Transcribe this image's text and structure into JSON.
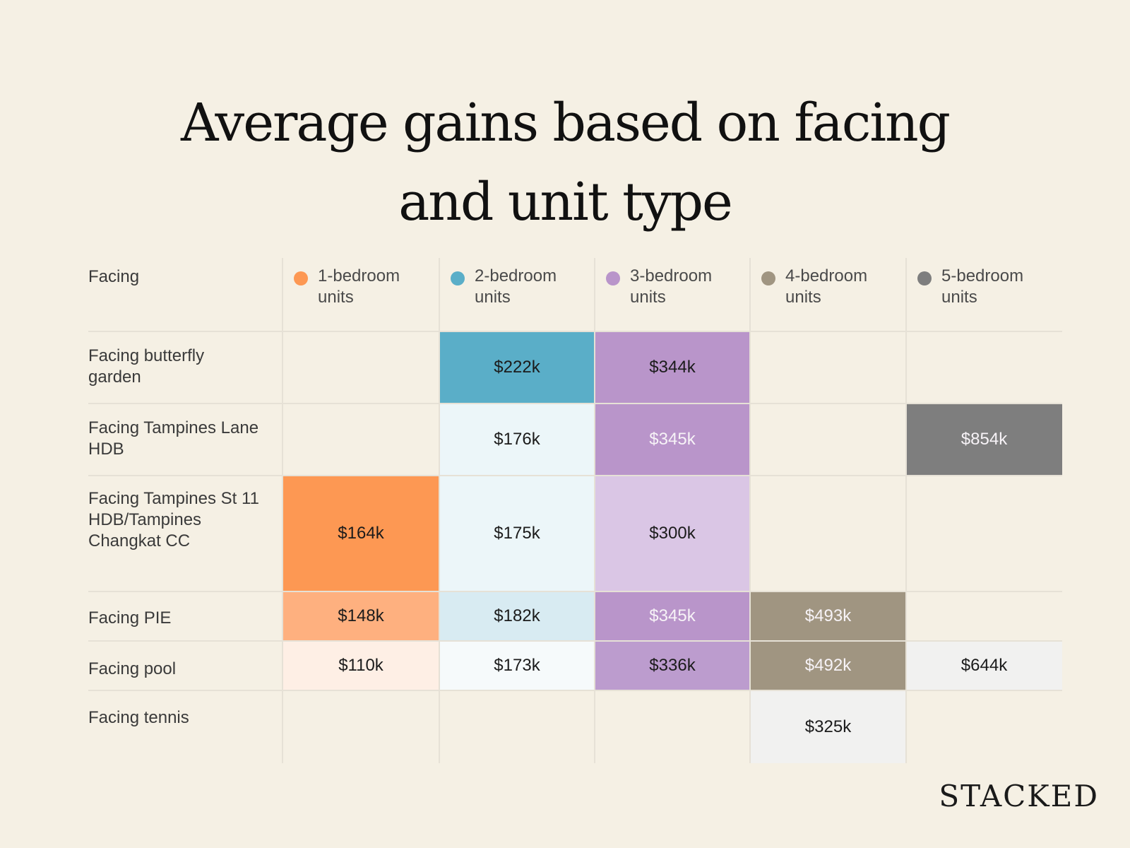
{
  "title_lines": [
    "Average gains based on facing",
    "and unit type"
  ],
  "brand": "STACKED",
  "chart_data": {
    "type": "table",
    "title": "Average gains based on facing and unit type",
    "row_header": "Facing",
    "columns": [
      {
        "label_line1": "1-bedroom",
        "label_line2": "units",
        "color": "#fd9853"
      },
      {
        "label_line1": "2-bedroom",
        "label_line2": "units",
        "color": "#5aaec8"
      },
      {
        "label_line1": "3-bedroom",
        "label_line2": "units",
        "color": "#b995ca"
      },
      {
        "label_line1": "4-bedroom",
        "label_line2": "units",
        "color": "#a09581"
      },
      {
        "label_line1": "5-bedroom",
        "label_line2": "units",
        "color": "#7e7e7e"
      }
    ],
    "rows": [
      {
        "label_lines": [
          "Facing butterfly",
          "garden"
        ],
        "cells": [
          null,
          {
            "value": "$222k",
            "bg": "#5aaec8",
            "text": "dark"
          },
          {
            "value": "$344k",
            "bg": "#b995ca",
            "text": "dark"
          },
          null,
          null
        ]
      },
      {
        "label_lines": [
          "Facing Tampines Lane",
          "HDB"
        ],
        "cells": [
          null,
          {
            "value": "$176k",
            "bg": "#ecf6f9",
            "text": "dark"
          },
          {
            "value": "$345k",
            "bg": "#b995ca",
            "text": "light"
          },
          null,
          {
            "value": "$854k",
            "bg": "#7e7e7e",
            "text": "light"
          }
        ]
      },
      {
        "label_lines": [
          "Facing Tampines St 11",
          "HDB/Tampines",
          "Changkat CC"
        ],
        "cells": [
          {
            "value": "$164k",
            "bg": "#fd9853",
            "text": "dark"
          },
          {
            "value": "$175k",
            "bg": "#ecf6f9",
            "text": "dark"
          },
          {
            "value": "$300k",
            "bg": "#dac6e5",
            "text": "dark"
          },
          null,
          null
        ]
      },
      {
        "label_lines": [
          "Facing PIE"
        ],
        "cells": [
          {
            "value": "$148k",
            "bg": "#feb07f",
            "text": "dark"
          },
          {
            "value": "$182k",
            "bg": "#d8ebf2",
            "text": "dark"
          },
          {
            "value": "$345k",
            "bg": "#b995ca",
            "text": "light"
          },
          {
            "value": "$493k",
            "bg": "#a09581",
            "text": "light"
          },
          null
        ]
      },
      {
        "label_lines": [
          "Facing pool"
        ],
        "cells": [
          {
            "value": "$110k",
            "bg": "#feefe5",
            "text": "dark"
          },
          {
            "value": "$173k",
            "bg": "#f6fafb",
            "text": "dark"
          },
          {
            "value": "$336k",
            "bg": "#bc9cce",
            "text": "dark"
          },
          {
            "value": "$492k",
            "bg": "#a09581",
            "text": "light"
          },
          {
            "value": "$644k",
            "bg": "#f1f1f0",
            "text": "dark"
          }
        ]
      },
      {
        "label_lines": [
          "Facing tennis"
        ],
        "cells": [
          null,
          null,
          null,
          {
            "value": "$325k",
            "bg": "#f1f1f0",
            "text": "dark"
          },
          null
        ]
      }
    ]
  }
}
